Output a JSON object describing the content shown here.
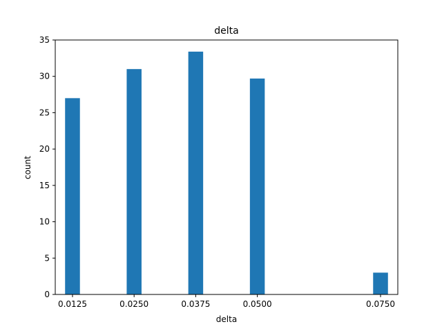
{
  "chart_data": {
    "type": "bar",
    "title": "delta",
    "xlabel": "delta",
    "ylabel": "count",
    "categories": [
      "0.0125",
      "0.0250",
      "0.0375",
      "0.0500",
      "0.0750"
    ],
    "x_values": [
      0.0125,
      0.025,
      0.0375,
      0.05,
      0.075
    ],
    "values": [
      27,
      31,
      33.4,
      29.7,
      3
    ],
    "ylim": [
      0,
      35
    ],
    "xlim": [
      0.009,
      0.0785
    ],
    "y_ticks": [
      "0",
      "5",
      "10",
      "15",
      "20",
      "25",
      "30",
      "35"
    ],
    "grid": false,
    "colors": {
      "bar": "#1f77b4",
      "axis": "#000000"
    }
  }
}
